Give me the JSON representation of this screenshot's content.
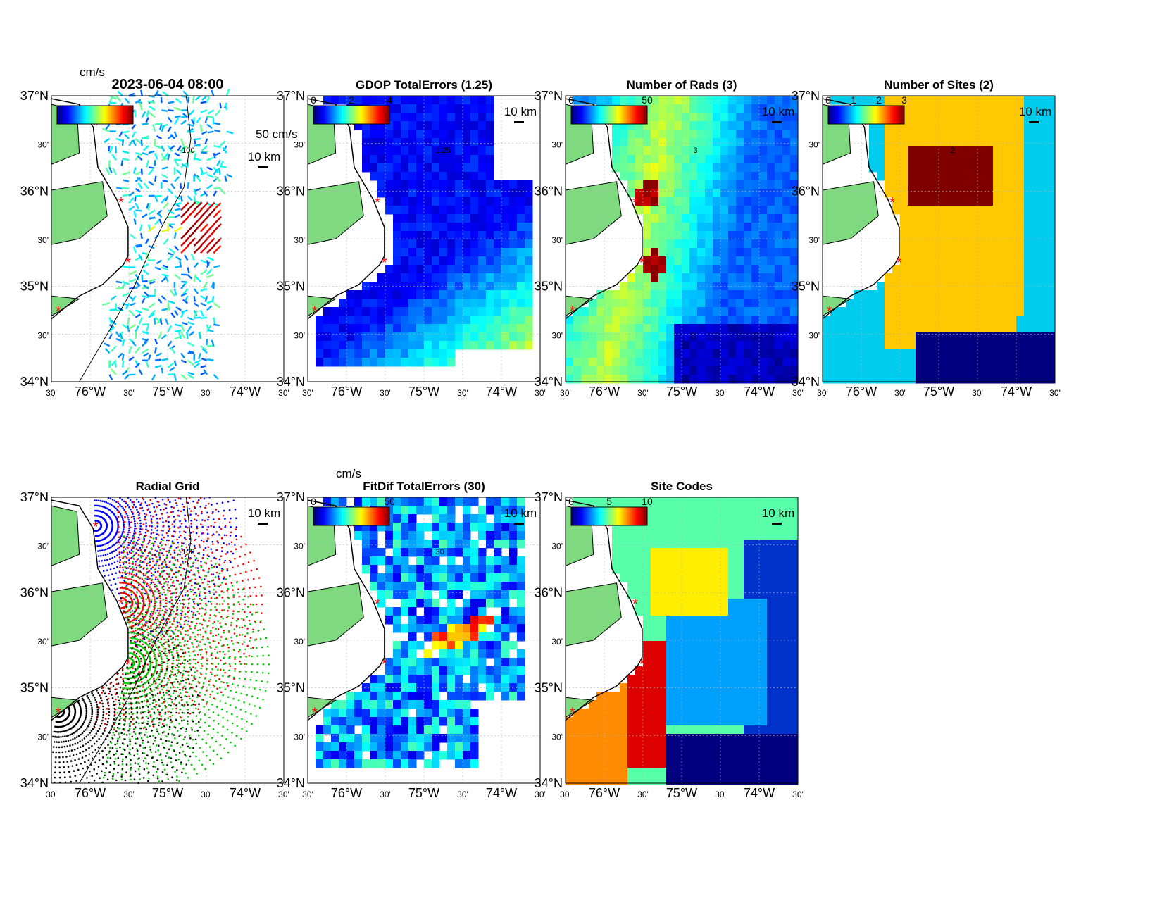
{
  "figure": {
    "timestamp": "2023-06-04 08:00",
    "lat_ticks": [
      "37°N",
      "30'",
      "36°N",
      "30'",
      "35°N",
      "30'",
      "34°N"
    ],
    "lon_ticks": [
      "30'",
      "76°W",
      "30'",
      "75°W",
      "30'",
      "74°W",
      "30'"
    ],
    "scale_label": "10 km",
    "colors": {
      "land": "#7fd97f",
      "site_marker": "#ff0000",
      "grid": "#b4b4b4"
    },
    "panels": [
      {
        "id": "total-currents",
        "title": "2023-06-04 08:00",
        "colorbar": {
          "unit_label": "cm/s",
          "ticks": []
        },
        "reference_vector_label": "50 cm/s",
        "contour_label": "-100",
        "icon": "vector-arrow-icon"
      },
      {
        "id": "gdop-total-errors",
        "title": "GDOP TotalErrors (1.25)",
        "colorbar": {
          "unit_label": "",
          "ticks": [
            "0",
            "2",
            "4"
          ]
        },
        "contour_label": "1.25"
      },
      {
        "id": "number-of-rads",
        "title": "Number of Rads (3)",
        "colorbar": {
          "unit_label": "",
          "ticks": [
            "0",
            "50"
          ]
        },
        "contour_label": "3"
      },
      {
        "id": "number-of-sites",
        "title": "Number of Sites (2)",
        "colorbar": {
          "unit_label": "",
          "ticks": [
            "0",
            "1",
            "2",
            "3"
          ]
        },
        "contour_label": "2"
      },
      {
        "id": "radial-grid",
        "title": "Radial Grid",
        "colorbar": null,
        "contour_label": "-100",
        "site_colors": [
          "#0000ff",
          "#ff0000",
          "#00cc00",
          "#000000"
        ]
      },
      {
        "id": "fitdif-total-errors",
        "title": "FitDif TotalErrors (30)",
        "colorbar": {
          "unit_label": "cm/s",
          "ticks": [
            "0",
            "50"
          ]
        },
        "contour_label": "30"
      },
      {
        "id": "site-codes",
        "title": "Site Codes",
        "colorbar": {
          "unit_label": "",
          "ticks": [
            "0",
            "5",
            "10"
          ]
        },
        "category_colors": [
          "#57ffa8",
          "#ffee00",
          "#00a0ff",
          "#ff8c00",
          "#dd0000",
          "#0033cc",
          "#000080"
        ]
      }
    ]
  }
}
